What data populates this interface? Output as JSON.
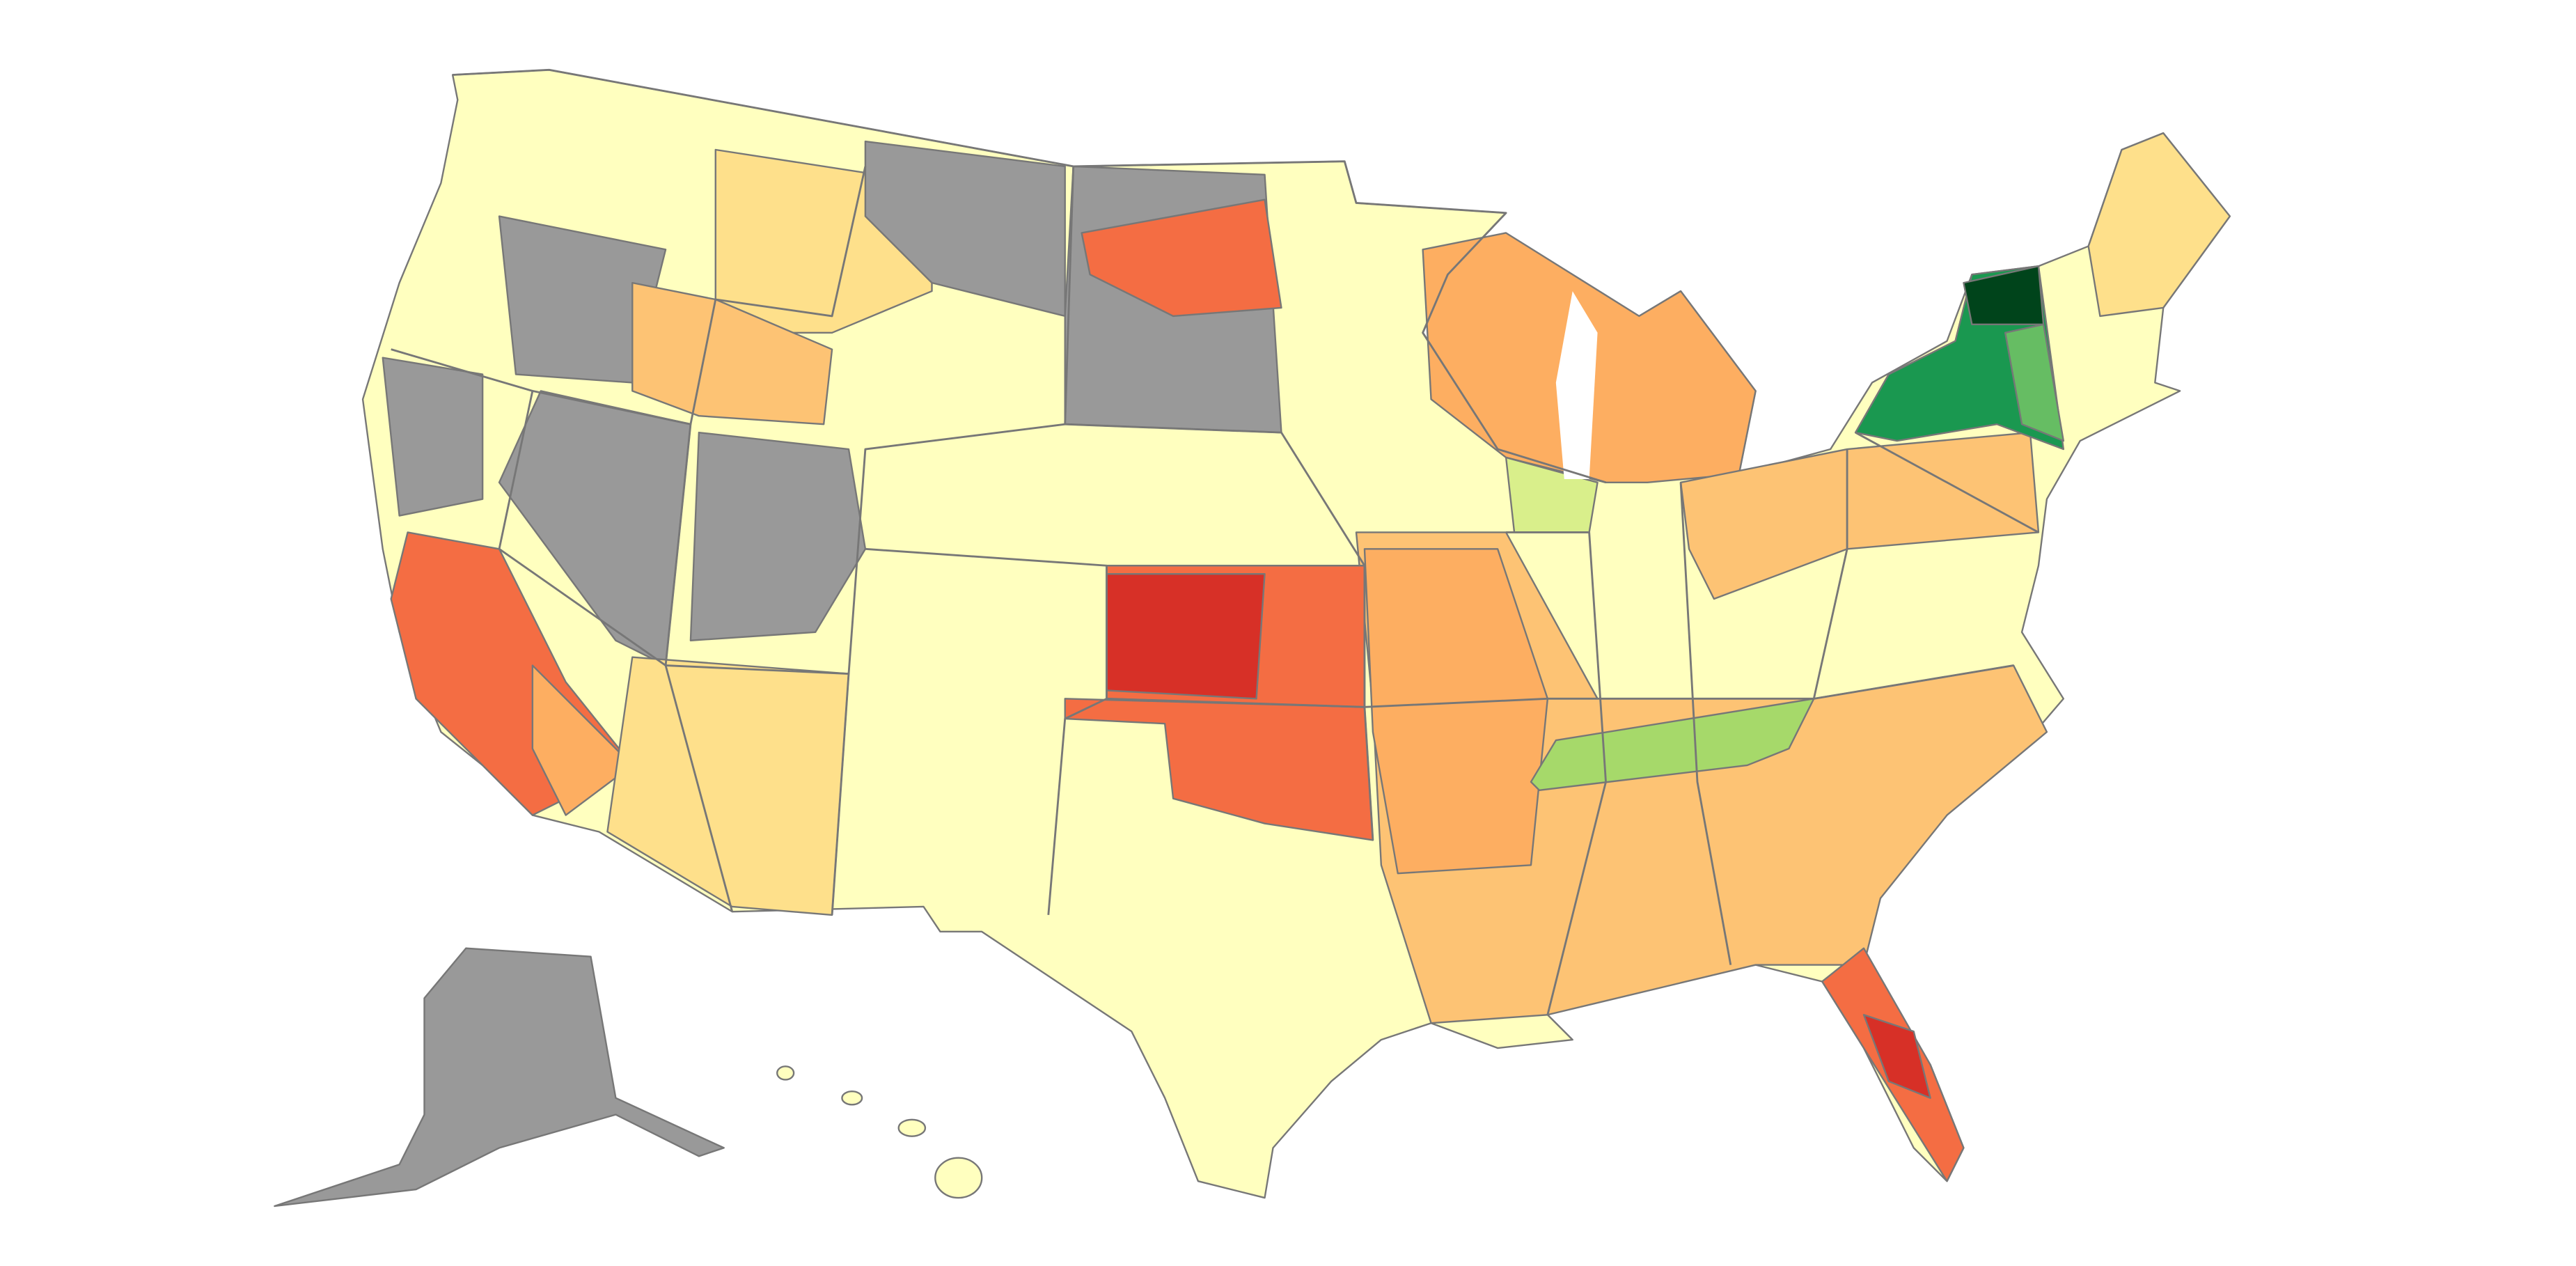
{
  "map": {
    "palette": [
      "#ffffbf",
      "#999999",
      "#fee08b",
      "#fdc374",
      "#fdae61",
      "#f46d43",
      "#d73027",
      "#d9ef8b",
      "#a6d96a",
      "#66bd63",
      "#1a9850",
      "#00441b"
    ],
    "border_color": "#777777"
  }
}
